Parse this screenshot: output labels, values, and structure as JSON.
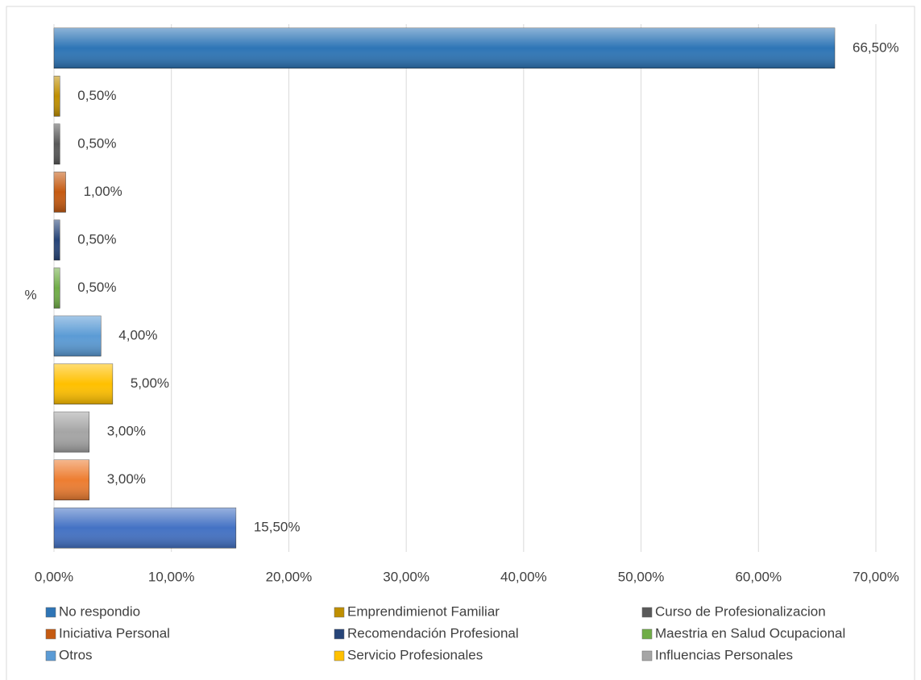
{
  "chart_data": {
    "type": "bar",
    "orientation": "horizontal",
    "categories": [
      "%"
    ],
    "series": [
      {
        "name": "No respondio",
        "color": "#2e75b6",
        "values": [
          66.5
        ],
        "value_labels": [
          "66,50%"
        ]
      },
      {
        "name": "Emprendimienot Familiar",
        "color": "#bf8f00",
        "values": [
          0.5
        ],
        "value_labels": [
          "0,50%"
        ]
      },
      {
        "name": "Curso de Profesionalizacion",
        "color": "#595959",
        "values": [
          0.5
        ],
        "value_labels": [
          "0,50%"
        ]
      },
      {
        "name": "Iniciativa Personal",
        "color": "#c55a11",
        "values": [
          1.0
        ],
        "value_labels": [
          "1,00%"
        ]
      },
      {
        "name": "Recomendación Profesional",
        "color": "#264478",
        "values": [
          0.5
        ],
        "value_labels": [
          "0,50%"
        ]
      },
      {
        "name": "Maestria en Salud Ocupacional",
        "color": "#70ad47",
        "values": [
          0.5
        ],
        "value_labels": [
          "0,50%"
        ]
      },
      {
        "name": "Otros",
        "color": "#5b9bd5",
        "values": [
          4.0
        ],
        "value_labels": [
          "4,00%"
        ]
      },
      {
        "name": "Servicio Profesionales",
        "color": "#ffc000",
        "values": [
          5.0
        ],
        "value_labels": [
          "5,00%"
        ]
      },
      {
        "name": "Influencias Personales",
        "color": "#a5a5a5",
        "values": [
          3.0
        ],
        "value_labels": [
          "3,00%"
        ]
      },
      {
        "name": null,
        "color": "#ed7d31",
        "values": [
          3.0
        ],
        "value_labels": [
          "3,00%"
        ]
      },
      {
        "name": null,
        "color": "#4472c4",
        "values": [
          15.5
        ],
        "value_labels": [
          "15,50%"
        ]
      }
    ],
    "xlim": [
      0,
      70
    ],
    "xticks": [
      {
        "value": 0,
        "label": "0,00%"
      },
      {
        "value": 10,
        "label": "10,00%"
      },
      {
        "value": 20,
        "label": "20,00%"
      },
      {
        "value": 30,
        "label": "30,00%"
      },
      {
        "value": 40,
        "label": "40,00%"
      },
      {
        "value": 50,
        "label": "50,00%"
      },
      {
        "value": 60,
        "label": "60,00%"
      },
      {
        "value": 70,
        "label": "70,00%"
      }
    ],
    "grid": true,
    "legend": "bottom"
  }
}
